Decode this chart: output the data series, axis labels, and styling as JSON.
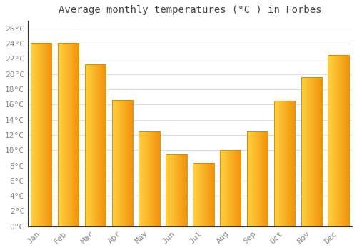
{
  "title": "Average monthly temperatures (°C ) in Forbes",
  "months": [
    "Jan",
    "Feb",
    "Mar",
    "Apr",
    "May",
    "Jun",
    "Jul",
    "Aug",
    "Sep",
    "Oct",
    "Nov",
    "Dec"
  ],
  "temperatures": [
    24.1,
    24.1,
    21.3,
    16.6,
    12.5,
    9.5,
    8.3,
    10.0,
    12.5,
    16.5,
    19.6,
    22.5
  ],
  "bar_color_left": "#FFD040",
  "bar_color_right": "#F0920A",
  "bar_edge_color": "#CC8800",
  "ylim": [
    0,
    27
  ],
  "yticks": [
    0,
    2,
    4,
    6,
    8,
    10,
    12,
    14,
    16,
    18,
    20,
    22,
    24,
    26
  ],
  "ytick_labels": [
    "0°C",
    "2°C",
    "4°C",
    "6°C",
    "8°C",
    "10°C",
    "12°C",
    "14°C",
    "16°C",
    "18°C",
    "20°C",
    "22°C",
    "24°C",
    "26°C"
  ],
  "grid_color": "#e0e0e0",
  "bg_color": "#ffffff",
  "title_fontsize": 10,
  "tick_fontsize": 8,
  "font_family": "monospace",
  "bar_width": 0.78,
  "n_gradient_steps": 30
}
